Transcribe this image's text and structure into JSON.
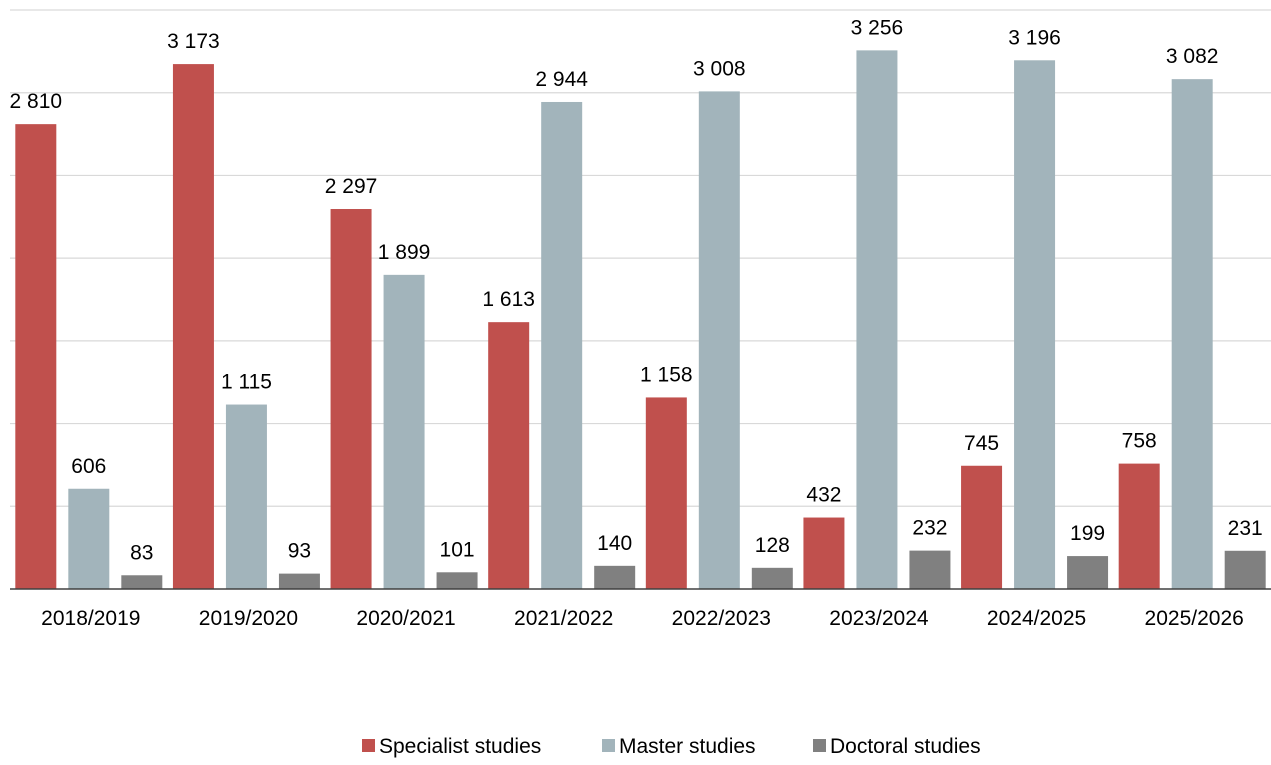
{
  "chart_data": {
    "type": "bar",
    "title": "",
    "xlabel": "",
    "ylabel": "",
    "ylim": [
      0,
      3500
    ],
    "grid": true,
    "legend_position": "bottom",
    "categories": [
      "2018/2019",
      "2019/2020",
      "2020/2021",
      "2021/2022",
      "2022/2023",
      "2023/2024",
      "2024/2025",
      "2025/2026"
    ],
    "series": [
      {
        "name": "Specialist studies",
        "color": "#c0504d",
        "values": [
          2810,
          3173,
          2297,
          1613,
          1158,
          432,
          745,
          758
        ],
        "labels": [
          "2 810",
          "3 173",
          "2 297",
          "1 613",
          "1 158",
          "432",
          "745",
          "758"
        ]
      },
      {
        "name": "Master studies",
        "color": "#a2b4bb",
        "values": [
          606,
          1115,
          1899,
          2944,
          3008,
          3256,
          3196,
          3082
        ],
        "labels": [
          "606",
          "1 115",
          "1 899",
          "2 944",
          "3 008",
          "3 256",
          "3 196",
          "3 082"
        ]
      },
      {
        "name": "Doctoral studies",
        "color": "#808080",
        "values": [
          83,
          93,
          101,
          140,
          128,
          232,
          199,
          231
        ],
        "labels": [
          "83",
          "93",
          "101",
          "140",
          "128",
          "232",
          "199",
          "231"
        ]
      }
    ]
  }
}
